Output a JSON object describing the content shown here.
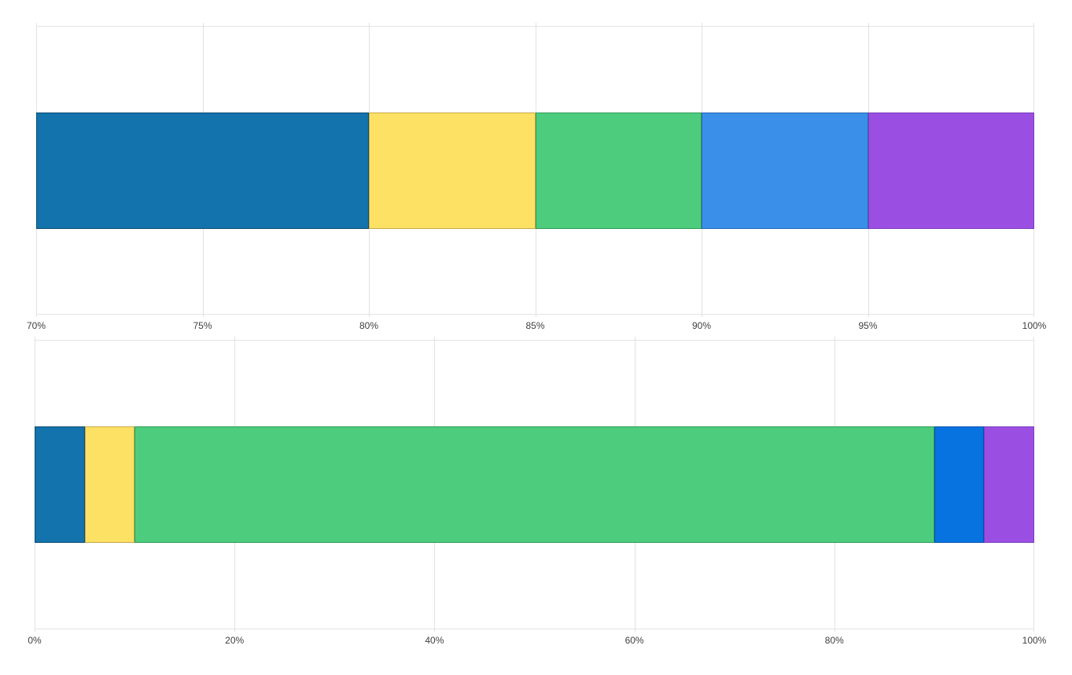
{
  "page": {
    "background_color": "#ffffff",
    "title": "",
    "legend_visible": false
  },
  "chart_data": [
    {
      "type": "bar",
      "stacked": true,
      "orientation": "horizontal",
      "title": "",
      "xlabel": "",
      "ylabel": "",
      "grid": true,
      "legend": false,
      "x_axis": {
        "min": 70,
        "max": 100,
        "format": "percent",
        "ticks": [
          {
            "value": 70,
            "label": "70%"
          },
          {
            "value": 75,
            "label": "75%"
          },
          {
            "value": 80,
            "label": "80%"
          },
          {
            "value": 85,
            "label": "85%"
          },
          {
            "value": 90,
            "label": "90%"
          },
          {
            "value": 95,
            "label": "95%"
          },
          {
            "value": 100,
            "label": "100%"
          }
        ]
      },
      "series": [
        {
          "name": "blue",
          "value": 80,
          "cumulative_end": 80,
          "color": "#1373ac",
          "border_color": "#0e4d74"
        },
        {
          "name": "yellow",
          "value": 5,
          "cumulative_end": 85,
          "color": "#fde165",
          "border_color": "#c9a845"
        },
        {
          "name": "green",
          "value": 5,
          "cumulative_end": 90,
          "color": "#4ecc7e",
          "border_color": "#2e9b55"
        },
        {
          "name": "light-blue",
          "value": 5,
          "cumulative_end": 95,
          "color": "#3a90e8",
          "border_color": "#2868b4"
        },
        {
          "name": "purple",
          "value": 5,
          "cumulative_end": 100,
          "color": "#9a4fe2",
          "border_color": "#7c3dbd"
        }
      ]
    },
    {
      "type": "bar",
      "stacked": true,
      "orientation": "horizontal",
      "title": "",
      "xlabel": "",
      "ylabel": "",
      "grid": true,
      "legend": false,
      "x_axis": {
        "min": 0,
        "max": 100,
        "format": "percent",
        "ticks": [
          {
            "value": 0,
            "label": "0%"
          },
          {
            "value": 20,
            "label": "20%"
          },
          {
            "value": 40,
            "label": "40%"
          },
          {
            "value": 60,
            "label": "60%"
          },
          {
            "value": 80,
            "label": "80%"
          },
          {
            "value": 100,
            "label": "100%"
          }
        ]
      },
      "series": [
        {
          "name": "blue",
          "value": 5,
          "cumulative_end": 5,
          "color": "#1373ac",
          "border_color": "#0e4d74"
        },
        {
          "name": "yellow",
          "value": 5,
          "cumulative_end": 10,
          "color": "#fde165",
          "border_color": "#c9a845"
        },
        {
          "name": "green",
          "value": 80,
          "cumulative_end": 90,
          "color": "#4ecc7e",
          "border_color": "#2e9b55"
        },
        {
          "name": "bright-blue",
          "value": 5,
          "cumulative_end": 95,
          "color": "#0673e1",
          "border_color": "#0453a8"
        },
        {
          "name": "purple",
          "value": 5,
          "cumulative_end": 100,
          "color": "#9a4fe2",
          "border_color": "#7c3dbd"
        }
      ]
    }
  ]
}
